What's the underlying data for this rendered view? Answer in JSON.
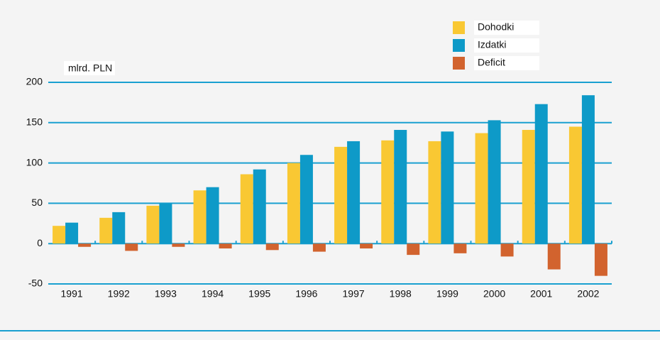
{
  "chart_data": {
    "type": "bar",
    "y_label": "mlrd. PLN",
    "categories": [
      "1991",
      "1992",
      "1993",
      "1994",
      "1995",
      "1996",
      "1997",
      "1998",
      "1999",
      "2000",
      "2001",
      "2002"
    ],
    "series": [
      {
        "name": "Dohodki",
        "color": "#f9c833",
        "values": [
          22,
          32,
          47,
          66,
          86,
          100,
          120,
          128,
          127,
          137,
          141,
          145
        ]
      },
      {
        "name": "Izdatki",
        "color": "#0e9ac8",
        "values": [
          26,
          39,
          50,
          70,
          92,
          110,
          127,
          141,
          139,
          153,
          173,
          184
        ]
      },
      {
        "name": "Deficit",
        "color": "#d2632e",
        "values": [
          -4,
          -9,
          -4,
          -6,
          -8,
          -10,
          -6,
          -14,
          -12,
          -16,
          -32,
          -40
        ]
      }
    ],
    "ylim": [
      -50,
      200
    ],
    "yticks": [
      -50,
      0,
      50,
      100,
      150,
      200
    ],
    "grid": true
  }
}
